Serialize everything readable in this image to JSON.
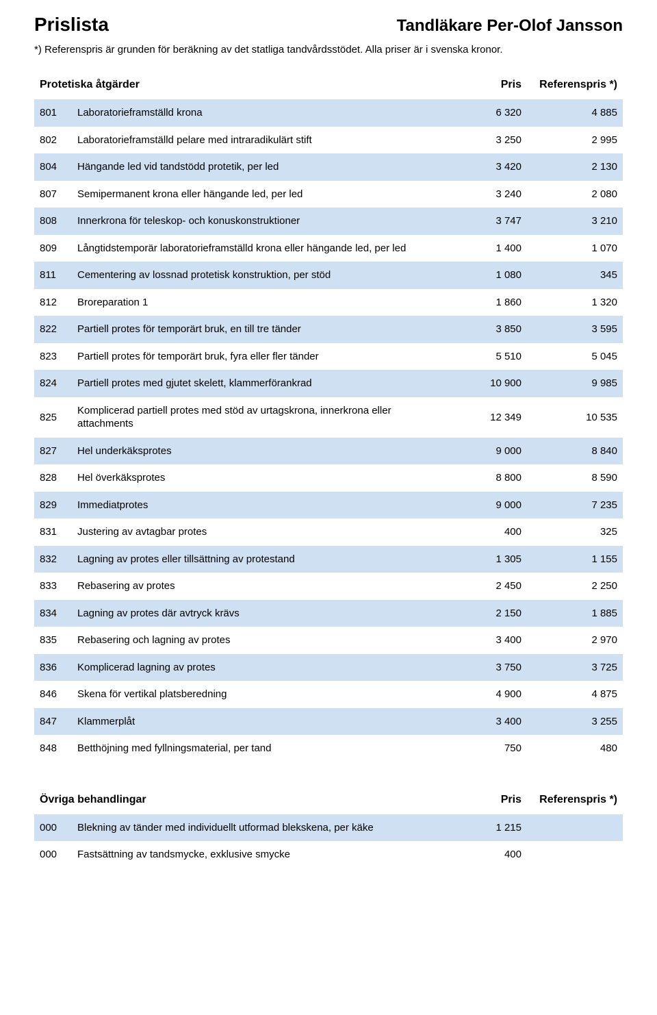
{
  "header": {
    "title_left": "Prislista",
    "title_right": "Tandläkare Per-Olof Jansson",
    "subtitle": "*) Referenspris är grunden för beräkning av det statliga tandvårdsstödet. Alla priser är i svenska kronor."
  },
  "colors": {
    "row_alt_bg": "#cfe0f3",
    "row_bg": "#ffffff",
    "text": "#000000"
  },
  "section1": {
    "title": "Protetiska åtgärder",
    "col_pris": "Pris",
    "col_ref": "Referenspris *)",
    "rows": [
      {
        "code": "801",
        "desc": "Laboratorieframställd krona",
        "pris": "6 320",
        "ref": "4 885"
      },
      {
        "code": "802",
        "desc": "Laboratorieframställd pelare med intraradikulärt stift",
        "pris": "3 250",
        "ref": "2 995"
      },
      {
        "code": "804",
        "desc": "Hängande led vid tandstödd protetik, per led",
        "pris": "3 420",
        "ref": "2 130"
      },
      {
        "code": "807",
        "desc": "Semipermanent krona eller hängande led, per led",
        "pris": "3 240",
        "ref": "2 080"
      },
      {
        "code": "808",
        "desc": "Innerkrona för teleskop- och konuskonstruktioner",
        "pris": "3 747",
        "ref": "3 210"
      },
      {
        "code": "809",
        "desc": "Långtidstemporär laboratorieframställd krona eller hängande led, per led",
        "pris": "1 400",
        "ref": "1 070"
      },
      {
        "code": "811",
        "desc": "Cementering av lossnad protetisk konstruktion, per stöd",
        "pris": "1 080",
        "ref": "345"
      },
      {
        "code": "812",
        "desc": "Broreparation 1",
        "pris": "1 860",
        "ref": "1 320"
      },
      {
        "code": "822",
        "desc": "Partiell protes för temporärt bruk, en till tre tänder",
        "pris": "3 850",
        "ref": "3 595"
      },
      {
        "code": "823",
        "desc": "Partiell protes för temporärt bruk, fyra eller fler tänder",
        "pris": "5 510",
        "ref": "5 045"
      },
      {
        "code": "824",
        "desc": "Partiell protes med gjutet skelett, klammerförankrad",
        "pris": "10 900",
        "ref": "9 985"
      },
      {
        "code": "825",
        "desc": "Komplicerad partiell protes med stöd av urtagskrona, innerkrona eller attachments",
        "pris": "12 349",
        "ref": "10 535"
      },
      {
        "code": "827",
        "desc": "Hel underkäksprotes",
        "pris": "9 000",
        "ref": "8 840"
      },
      {
        "code": "828",
        "desc": "Hel överkäksprotes",
        "pris": "8 800",
        "ref": "8 590"
      },
      {
        "code": "829",
        "desc": "Immediatprotes",
        "pris": "9 000",
        "ref": "7 235"
      },
      {
        "code": "831",
        "desc": "Justering av avtagbar protes",
        "pris": "400",
        "ref": "325"
      },
      {
        "code": "832",
        "desc": "Lagning av protes eller tillsättning av protestand",
        "pris": "1 305",
        "ref": "1 155"
      },
      {
        "code": "833",
        "desc": "Rebasering av protes",
        "pris": "2 450",
        "ref": "2 250"
      },
      {
        "code": "834",
        "desc": "Lagning av protes där avtryck krävs",
        "pris": "2 150",
        "ref": "1 885"
      },
      {
        "code": "835",
        "desc": "Rebasering och lagning av protes",
        "pris": "3 400",
        "ref": "2 970"
      },
      {
        "code": "836",
        "desc": "Komplicerad lagning av protes",
        "pris": "3 750",
        "ref": "3 725"
      },
      {
        "code": "846",
        "desc": "Skena för vertikal platsberedning",
        "pris": "4 900",
        "ref": "4 875"
      },
      {
        "code": "847",
        "desc": "Klammerplåt",
        "pris": "3 400",
        "ref": "3 255"
      },
      {
        "code": "848",
        "desc": "Betthöjning med fyllningsmaterial, per tand",
        "pris": "750",
        "ref": "480"
      }
    ]
  },
  "section2": {
    "title": "Övriga behandlingar",
    "col_pris": "Pris",
    "col_ref": "Referenspris *)",
    "rows": [
      {
        "code": "000",
        "desc": "Blekning av tänder med individuellt utformad blekskena, per käke",
        "pris": "1 215",
        "ref": ""
      },
      {
        "code": "000",
        "desc": "Fastsättning av tandsmycke, exklusive smycke",
        "pris": "400",
        "ref": ""
      }
    ]
  }
}
